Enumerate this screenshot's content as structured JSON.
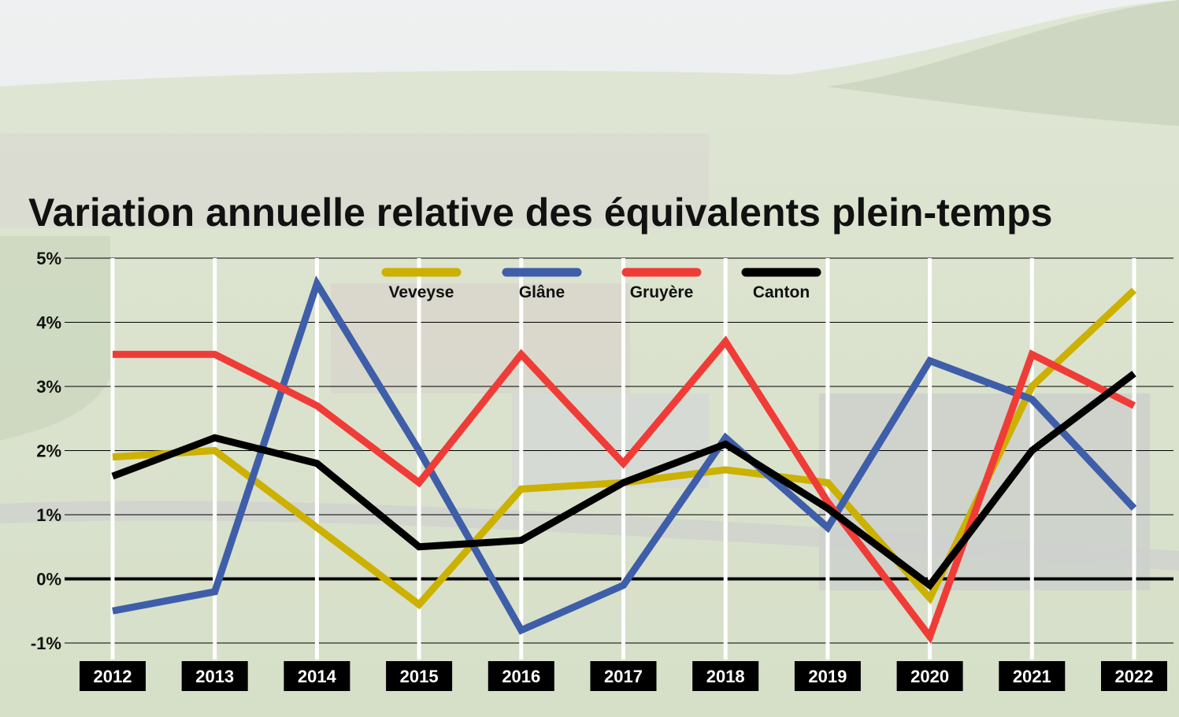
{
  "colors": {
    "Veveyse": "#ccb100",
    "Glâne": "#3f5ea9",
    "Gruyère": "#f03c37",
    "Canton": "#000000"
  },
  "chart_data": {
    "type": "line",
    "title": "Variation annuelle relative des équivalents plein-temps",
    "xlabel": "",
    "ylabel": "",
    "categories": [
      "2012",
      "2013",
      "2014",
      "2015",
      "2016",
      "2017",
      "2018",
      "2019",
      "2020",
      "2021",
      "2022"
    ],
    "ylim": [
      -1,
      5
    ],
    "yticks": [
      5,
      4,
      3,
      2,
      1,
      0,
      -1
    ],
    "ytick_labels": [
      "5%",
      "4%",
      "3%",
      "2%",
      "1%",
      "0%",
      "-1%"
    ],
    "grid": true,
    "legend_position": "top",
    "series": [
      {
        "name": "Veveyse",
        "values": [
          1.9,
          2.0,
          0.8,
          -0.4,
          1.4,
          1.5,
          1.7,
          1.5,
          -0.3,
          3.0,
          4.5
        ]
      },
      {
        "name": "Glâne",
        "values": [
          -0.5,
          -0.2,
          4.6,
          2.0,
          -0.8,
          -0.1,
          2.2,
          0.8,
          3.4,
          2.8,
          1.1
        ]
      },
      {
        "name": "Gruyère",
        "values": [
          3.5,
          3.5,
          2.7,
          1.5,
          3.5,
          1.8,
          3.7,
          1.2,
          -0.9,
          3.5,
          2.7
        ]
      },
      {
        "name": "Canton",
        "values": [
          1.6,
          2.2,
          1.8,
          0.5,
          0.6,
          1.5,
          2.1,
          1.1,
          -0.1,
          2.0,
          3.2
        ]
      }
    ]
  }
}
